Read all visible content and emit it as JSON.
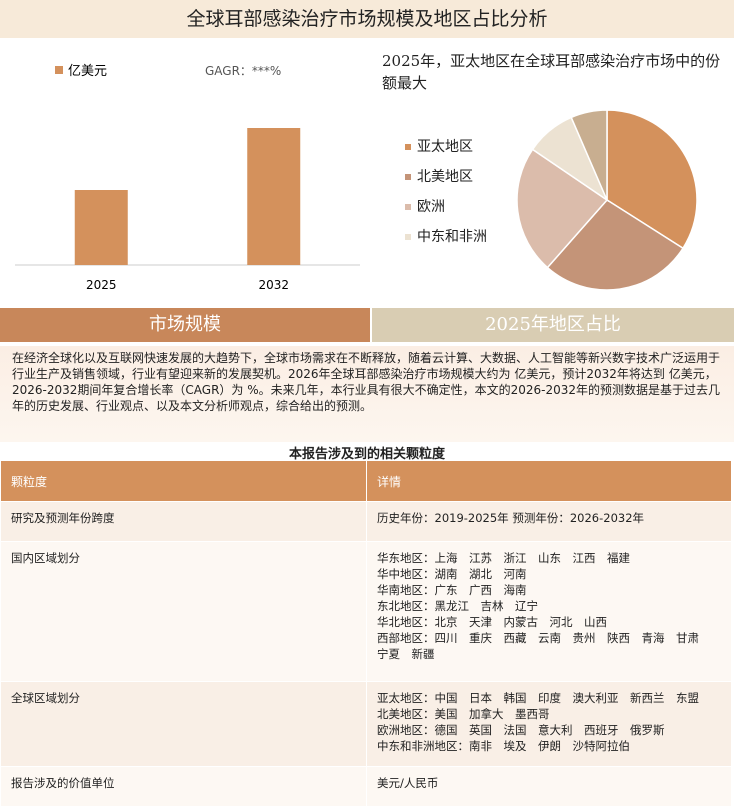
{
  "header": {
    "title": "全球耳部感染治疗市场规模及地区占比分析"
  },
  "bar_chart": {
    "type": "bar",
    "legend": "亿美元",
    "cagr": "GAGR：***%",
    "categories": [
      "2025",
      "2032"
    ],
    "values": [
      75,
      137
    ],
    "ylim": [
      0,
      165
    ],
    "color": "#d4915c"
  },
  "pie_chart": {
    "type": "pie",
    "title": "2025年，亚太地区在全球耳部感染治疗市场中的份额最大",
    "categories": [
      "亚太地区",
      "北美地区",
      "欧洲",
      "中东和非洲",
      null
    ],
    "values": [
      34,
      27.5,
      23,
      9,
      6.5
    ],
    "colors": [
      "#d4915c",
      "#c49478",
      "#dbbcab",
      "#ece2d2",
      "#c8ae90"
    ]
  },
  "tabs": [
    "市场规模",
    "2025年地区占比"
  ],
  "intro": "在经济全球化以及互联网快速发展的大趋势下，全球市场需求在不断释放，随着云计算、大数据、人工智能等新兴数字技术广泛运用于行业生产及销售领域，行业有望迎来新的发展契机。2026年全球耳部感染治疗市场规模大约为 亿美元，预计2032年将达到 亿美元，2026-2032期间年复合增长率（CAGR）为 %。未来几年，本行业具有很大不确定性，本文的2026-2032年的预测数据是基于过去几年的历史发展、行业观点、以及本文分析师观点，综合给出的预测。",
  "table": {
    "title": "本报告涉及到的相关颗粒度",
    "header": [
      "颗粒度",
      "详情"
    ],
    "rows": [
      [
        "研究及预测年份跨度",
        [
          "历史年份：2019-2025年 预测年份：2026-2032年"
        ]
      ],
      [
        "国内区域划分",
        [
          "华东地区：上海　江苏　浙江　山东　江西　福建",
          "华中地区：湖南　湖北　河南",
          "华南地区：广东　广西　海南",
          "东北地区：黑龙江　吉林　辽宁",
          "华北地区：北京　天津　内蒙古　河北　山西",
          "西部地区：四川　重庆　西藏　云南　贵州　陕西　青海　甘肃　宁夏　新疆"
        ]
      ],
      [
        "全球区域划分",
        [
          "亚太地区：中国　日本　韩国　印度　澳大利亚　新西兰　东盟",
          "北美地区：美国　加拿大　墨西哥",
          "欧洲地区：德国　英国　法国　意大利　西班牙　俄罗斯",
          "中东和非洲地区：南非　埃及　伊朗　沙特阿拉伯"
        ]
      ],
      [
        "报告涉及的价值单位",
        [
          "美元/人民币"
        ]
      ]
    ]
  }
}
